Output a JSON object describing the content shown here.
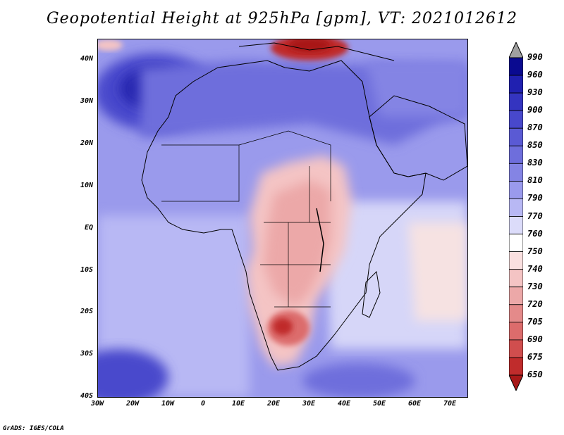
{
  "title": "Geopotential Height at 925hPa [gpm], VT: 2021012612",
  "footer": "GrADS: IGES/COLA",
  "map": {
    "lat_labels": [
      "40N",
      "30N",
      "20N",
      "10N",
      "EQ",
      "10S",
      "20S",
      "30S",
      "40S"
    ],
    "lon_labels": [
      "30W",
      "20W",
      "10W",
      "0",
      "10E",
      "20E",
      "30E",
      "40E",
      "50E",
      "60E",
      "70E"
    ]
  },
  "colorbar": {
    "levels": [
      "990",
      "960",
      "930",
      "900",
      "870",
      "850",
      "830",
      "810",
      "790",
      "770",
      "760",
      "750",
      "740",
      "730",
      "720",
      "705",
      "690",
      "675",
      "650"
    ],
    "colors": [
      "#a0a0a0",
      "#0a0a90",
      "#2020b0",
      "#3434c0",
      "#4848cc",
      "#5a5ad4",
      "#6e6edc",
      "#8484e4",
      "#9a9aec",
      "#b8b8f4",
      "#dcdcfa",
      "#ffffff",
      "#fae0e0",
      "#f4c4c4",
      "#eca8a8",
      "#e48a8a",
      "#dc6c6c",
      "#d04e4e",
      "#c02c2c",
      "#a81818"
    ]
  }
}
